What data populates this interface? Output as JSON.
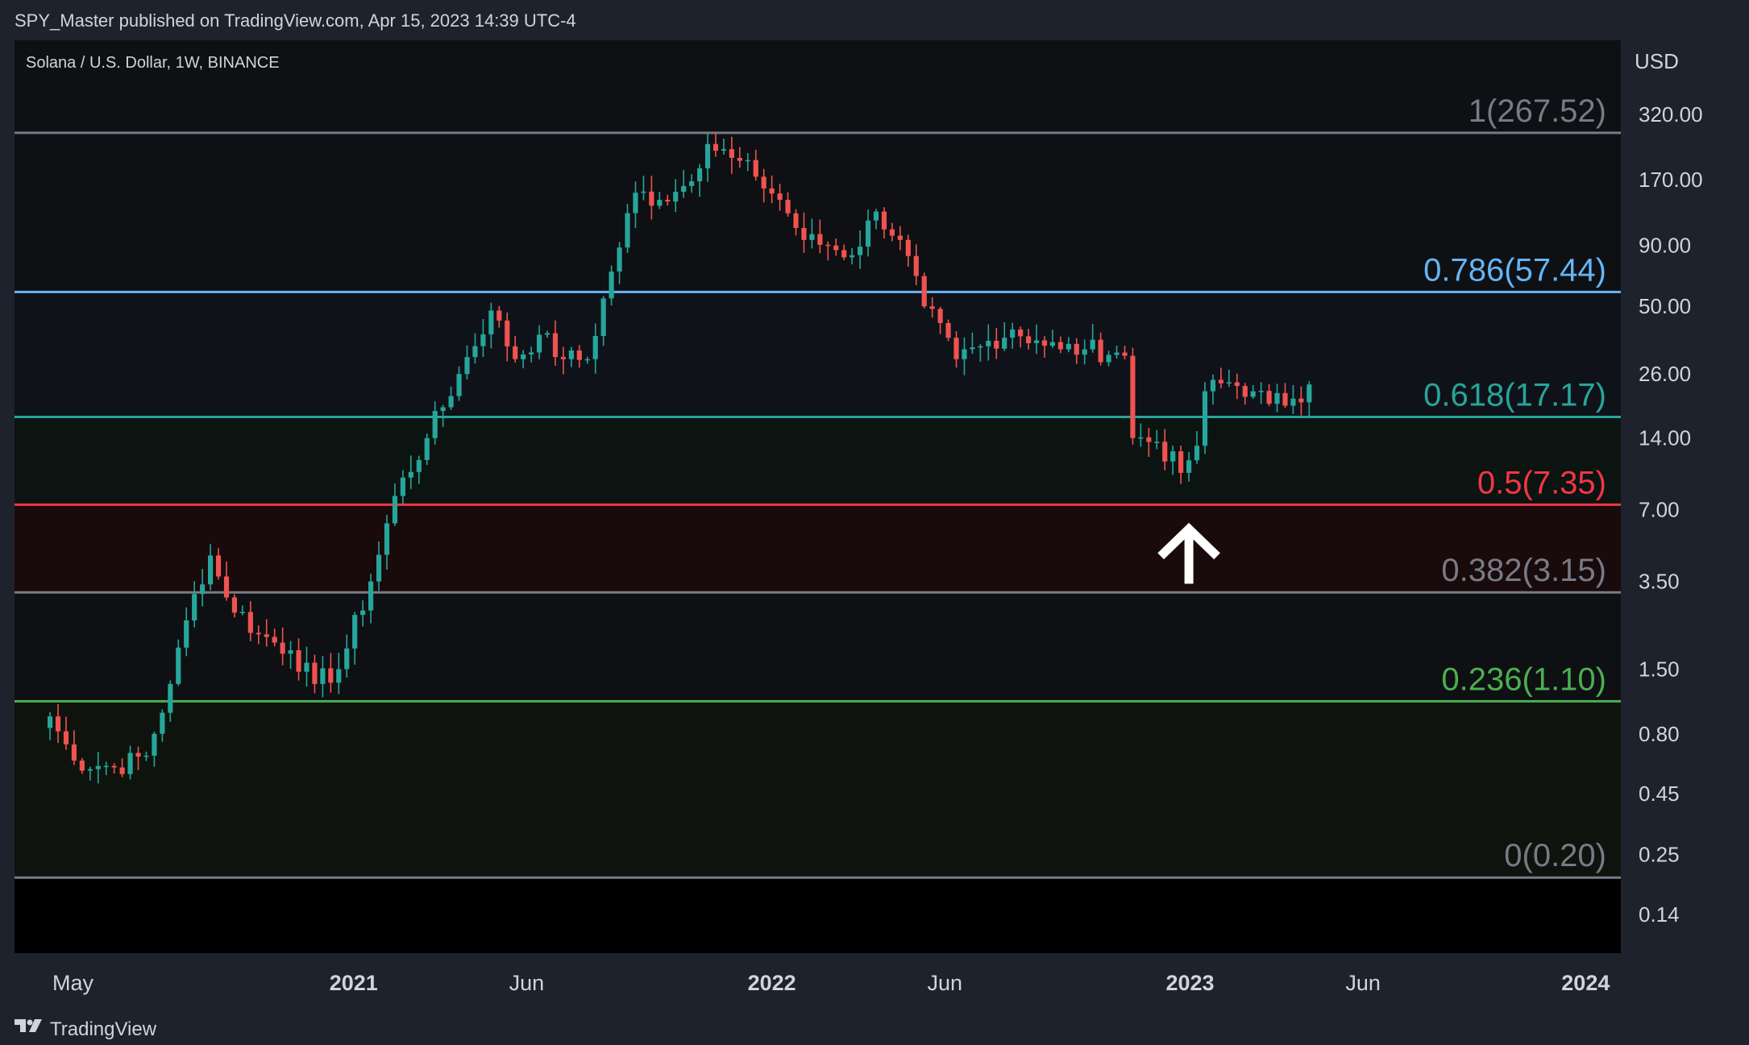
{
  "header": {
    "publish_line": "SPY_Master published on TradingView.com, Apr 15, 2023 14:39 UTC-4"
  },
  "footer": {
    "brand": "TradingView"
  },
  "colors": {
    "background": "#1e222d",
    "pane": "#0f1013",
    "up": "#26a69a",
    "down": "#ef5350",
    "text": "#d1d4dc"
  },
  "chart_data": {
    "type": "candlestick",
    "symbol": "Solana / U.S. Dollar, 1W, BINANCE",
    "currency": "USD",
    "y_scale": "log",
    "ylim": [
      0.11,
      560
    ],
    "y_ticks": [
      "320.00",
      "170.00",
      "90.00",
      "50.00",
      "26.00",
      "14.00",
      "7.00",
      "3.50",
      "1.50",
      "0.80",
      "0.45",
      "0.25",
      "0.14"
    ],
    "x_ticks": [
      {
        "label": "May",
        "date": "2020-05-01",
        "bold": false
      },
      {
        "label": "2021",
        "date": "2021-01-01",
        "bold": true
      },
      {
        "label": "Jun",
        "date": "2021-06-01",
        "bold": false
      },
      {
        "label": "2022",
        "date": "2022-01-01",
        "bold": true
      },
      {
        "label": "Jun",
        "date": "2022-06-01",
        "bold": false
      },
      {
        "label": "2023",
        "date": "2023-01-01",
        "bold": true
      },
      {
        "label": "Jun",
        "date": "2023-06-01",
        "bold": false
      },
      {
        "label": "2024",
        "date": "2024-01-01",
        "bold": true
      }
    ],
    "x_range": [
      "2020-03-11",
      "2024-01-12"
    ],
    "fib_levels": [
      {
        "level": "1",
        "price": 267.52,
        "label": "1(267.52)",
        "line_color": "#787b86",
        "label_color": "#787b86",
        "zone": "#0f1013"
      },
      {
        "level": "0.786",
        "price": 57.44,
        "label": "0.786(57.44)",
        "line_color": "#64b5f6",
        "label_color": "#64b5f6",
        "zone": "#10121a"
      },
      {
        "level": "0.618",
        "price": 17.17,
        "label": "0.618(17.17)",
        "line_color": "#26a69a",
        "label_color": "#26a69a",
        "zone": "#0c1412"
      },
      {
        "level": "0.5",
        "price": 7.35,
        "label": "0.5(7.35)",
        "line_color": "#f23645",
        "label_color": "#f23645",
        "zone": "#190a0c"
      },
      {
        "level": "0.382",
        "price": 3.15,
        "label": "0.382(3.15)",
        "line_color": "#787b86",
        "label_color": "#787b86",
        "zone": "#0f1013"
      },
      {
        "level": "0.236",
        "price": 1.1,
        "label": "0.236(1.10)",
        "line_color": "#4caf50",
        "label_color": "#4caf50",
        "zone": "#0e140d"
      },
      {
        "level": "0",
        "price": 0.2,
        "label": "0(0.20)",
        "line_color": "#787b86",
        "label_color": "#787b86",
        "zone": "#000000"
      }
    ],
    "annotation": {
      "type": "arrow-up",
      "date": "2022-12-31",
      "price": 6.0,
      "color": "#ffffff"
    },
    "anchors": [
      {
        "date": "2020-04-11",
        "close": 0.95
      },
      {
        "date": "2020-05-02",
        "close": 0.62
      },
      {
        "date": "2020-06-06",
        "close": 0.58
      },
      {
        "date": "2020-07-04",
        "close": 0.65
      },
      {
        "date": "2020-07-25",
        "close": 1.3
      },
      {
        "date": "2020-08-15",
        "close": 3.1
      },
      {
        "date": "2020-08-29",
        "close": 4.5
      },
      {
        "date": "2020-09-12",
        "close": 3.0
      },
      {
        "date": "2020-10-10",
        "close": 2.1
      },
      {
        "date": "2020-11-07",
        "close": 1.8
      },
      {
        "date": "2020-11-28",
        "close": 1.3
      },
      {
        "date": "2020-12-19",
        "close": 1.5
      },
      {
        "date": "2021-01-16",
        "close": 3.5
      },
      {
        "date": "2021-02-06",
        "close": 8.0
      },
      {
        "date": "2021-03-06",
        "close": 14.0
      },
      {
        "date": "2021-04-03",
        "close": 26.0
      },
      {
        "date": "2021-05-01",
        "close": 48.0
      },
      {
        "date": "2021-05-22",
        "close": 30.0
      },
      {
        "date": "2021-06-12",
        "close": 38.0
      },
      {
        "date": "2021-07-03",
        "close": 30.0
      },
      {
        "date": "2021-07-24",
        "close": 30.0
      },
      {
        "date": "2021-08-14",
        "close": 70.0
      },
      {
        "date": "2021-09-04",
        "close": 150.0
      },
      {
        "date": "2021-09-25",
        "close": 140.0
      },
      {
        "date": "2021-10-16",
        "close": 160.0
      },
      {
        "date": "2021-11-06",
        "close": 240.0
      },
      {
        "date": "2021-11-27",
        "close": 210.0
      },
      {
        "date": "2021-12-18",
        "close": 175.0
      },
      {
        "date": "2022-01-08",
        "close": 140.0
      },
      {
        "date": "2022-01-29",
        "close": 95.0
      },
      {
        "date": "2022-02-19",
        "close": 90.0
      },
      {
        "date": "2022-03-12",
        "close": 82.0
      },
      {
        "date": "2022-04-02",
        "close": 125.0
      },
      {
        "date": "2022-04-23",
        "close": 95.0
      },
      {
        "date": "2022-05-14",
        "close": 50.0
      },
      {
        "date": "2022-06-11",
        "close": 30.0
      },
      {
        "date": "2022-07-02",
        "close": 34.0
      },
      {
        "date": "2022-07-30",
        "close": 40.0
      },
      {
        "date": "2022-08-20",
        "close": 36.0
      },
      {
        "date": "2022-09-10",
        "close": 33.0
      },
      {
        "date": "2022-10-01",
        "close": 33.0
      },
      {
        "date": "2022-10-29",
        "close": 32.0
      },
      {
        "date": "2022-11-05",
        "close": 31.0
      },
      {
        "date": "2022-11-12",
        "close": 14.0
      },
      {
        "date": "2022-12-03",
        "close": 13.5
      },
      {
        "date": "2022-12-24",
        "close": 10.0
      },
      {
        "date": "2023-01-07",
        "close": 13.0
      },
      {
        "date": "2023-01-14",
        "close": 22.0
      },
      {
        "date": "2023-02-04",
        "close": 24.0
      },
      {
        "date": "2023-02-25",
        "close": 22.0
      },
      {
        "date": "2023-03-11",
        "close": 19.5
      },
      {
        "date": "2023-04-01",
        "close": 20.5
      },
      {
        "date": "2023-04-15",
        "close": 23.5
      }
    ]
  }
}
